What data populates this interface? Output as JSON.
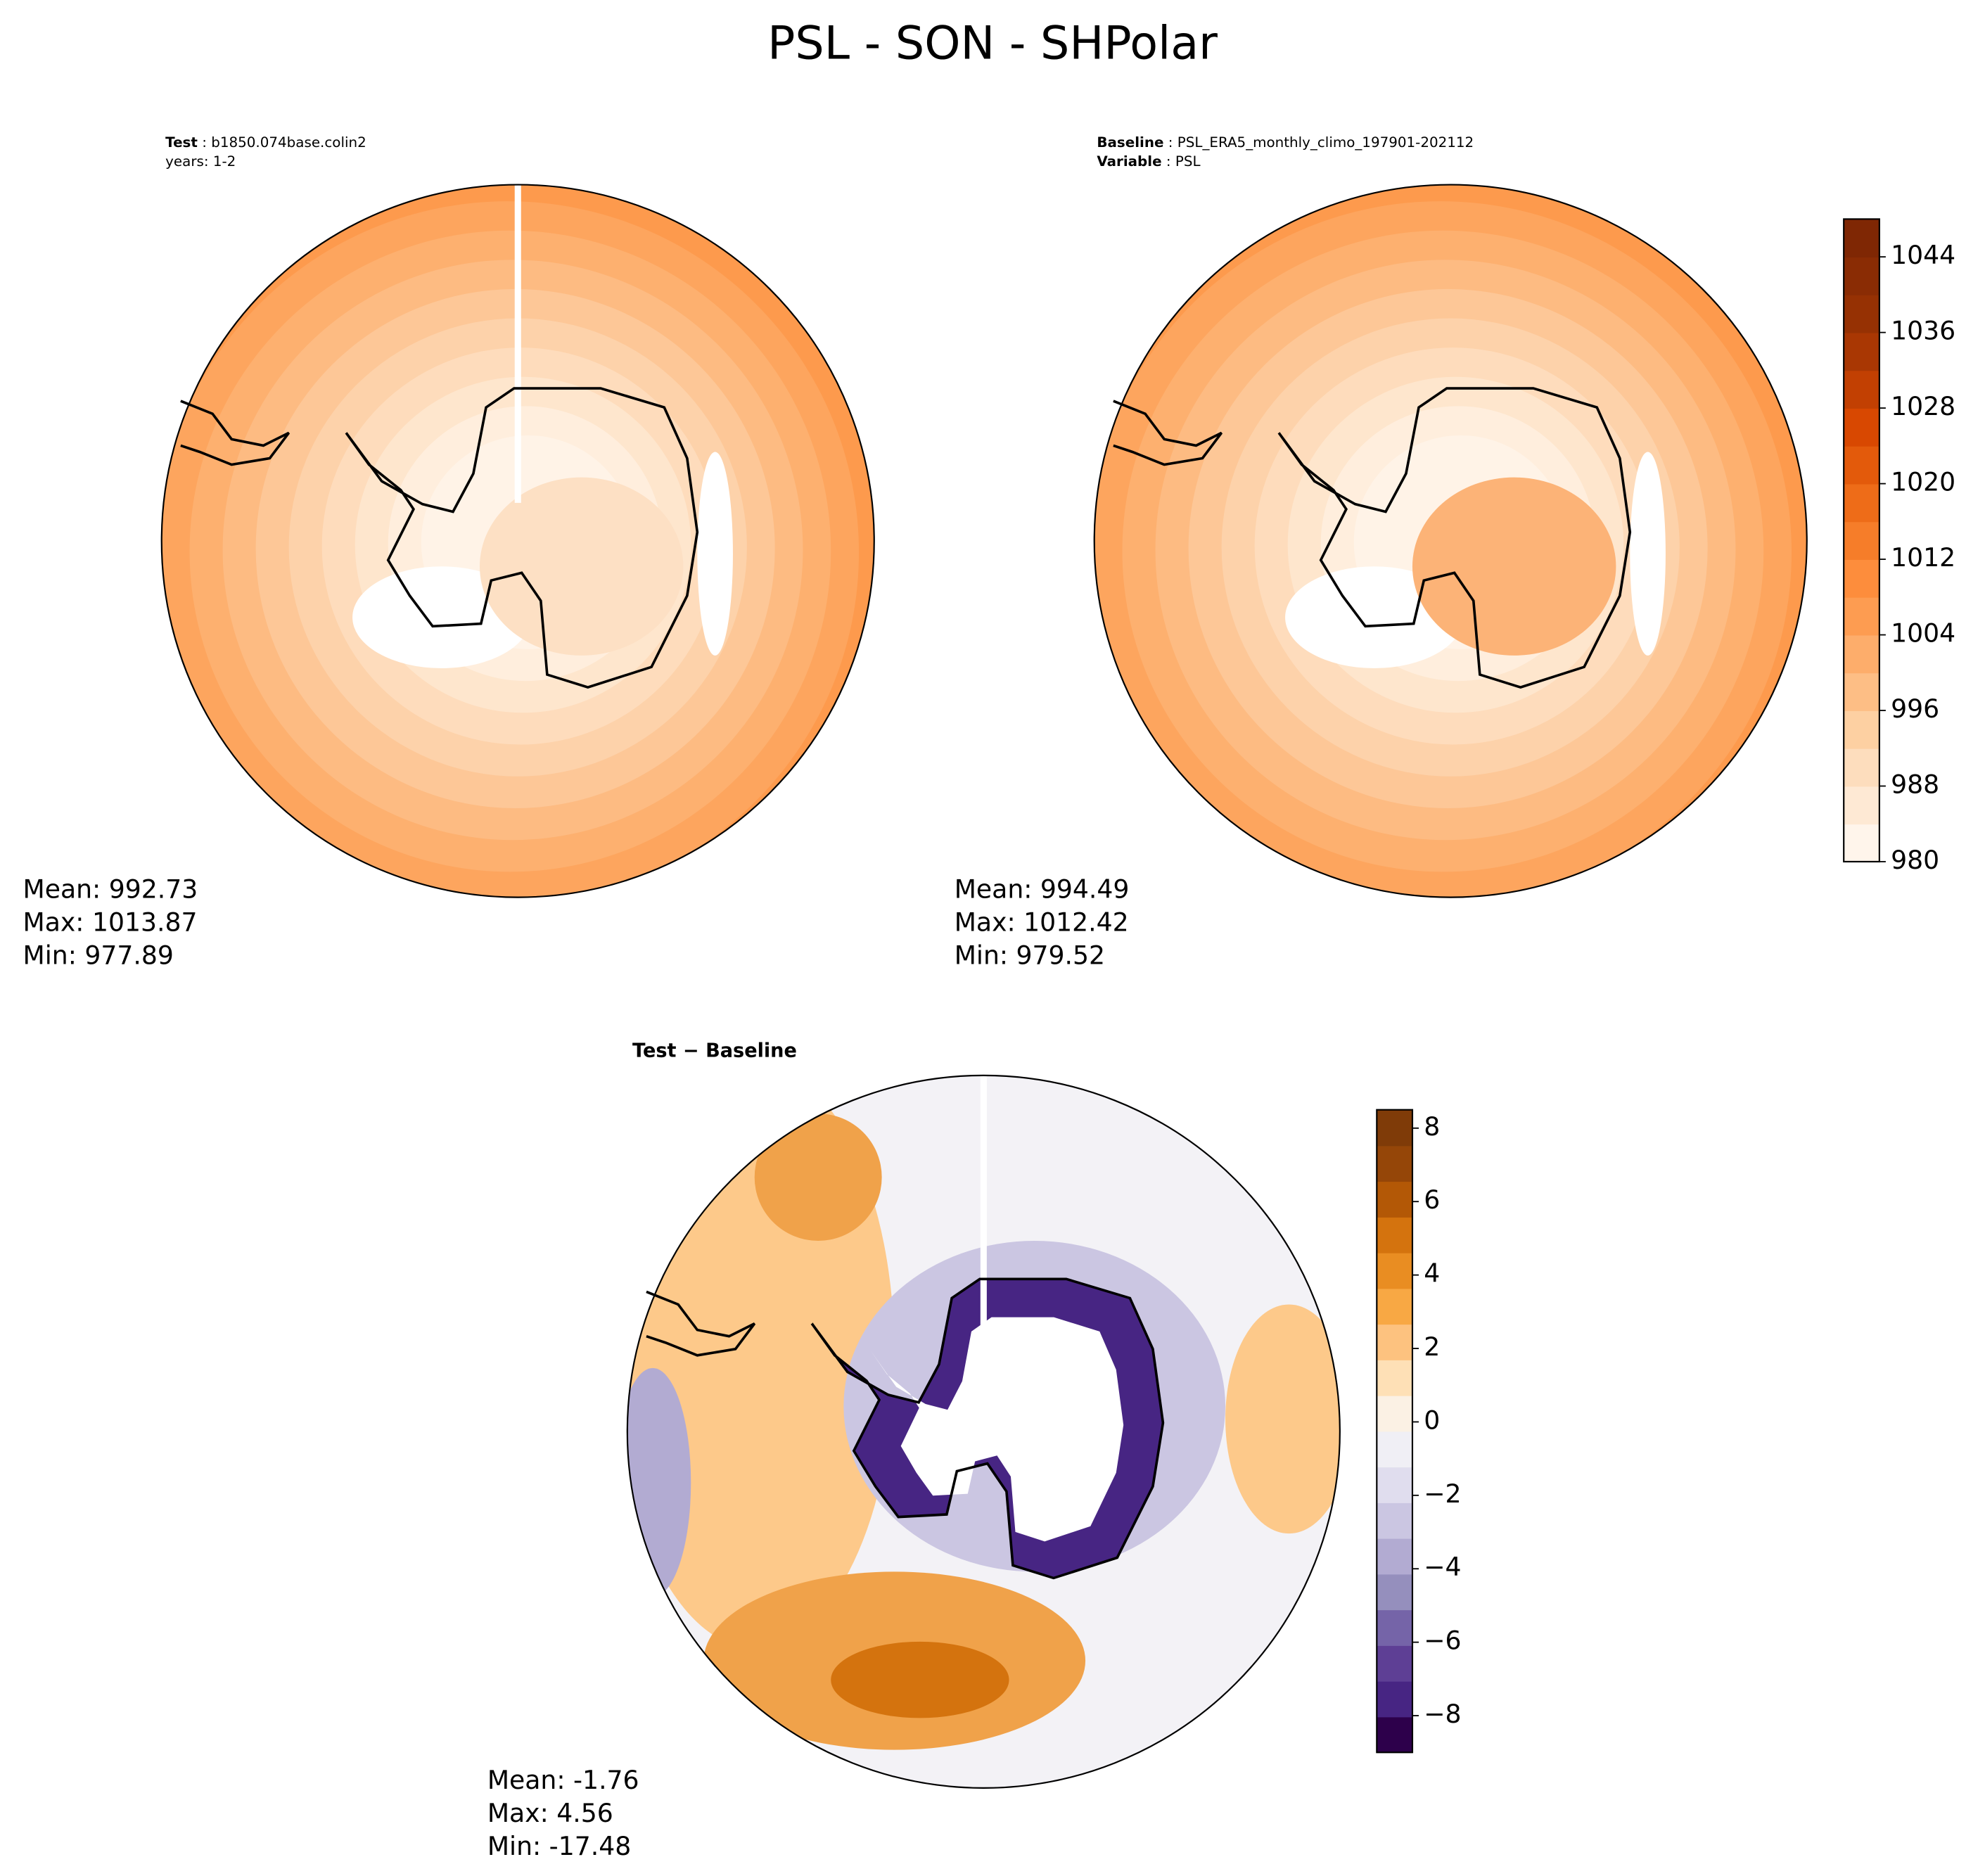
{
  "title": "PSL - SON - SHPolar",
  "panels": [
    {
      "header": [
        {
          "bold": "Test",
          "rest": " : b1850.074base.colin2"
        },
        {
          "bold": "",
          "rest": "years: 1-2"
        }
      ],
      "stats": [
        "Mean: 992.73",
        "Max: 1013.87",
        "Min: 977.89"
      ]
    },
    {
      "header": [
        {
          "bold": "Baseline",
          "rest": " : PSL_ERA5_monthly_climo_197901-202112"
        },
        {
          "bold": "Variable",
          "rest": " : PSL"
        }
      ],
      "stats": [
        "Mean: 994.49",
        "Max: 1012.42",
        "Min: 979.52"
      ]
    },
    {
      "header": [
        {
          "bold": "Test − Baseline",
          "rest": ""
        }
      ],
      "stats": [
        "Mean: -1.76",
        "Max:  4.56",
        "Min: -17.48"
      ]
    }
  ],
  "colorbars": [
    {
      "range": [
        980,
        1048
      ],
      "ticks": [
        980,
        988,
        996,
        1004,
        1012,
        1020,
        1028,
        1036,
        1044
      ],
      "colors": [
        "#fff5eb",
        "#fee9d4",
        "#fdddbd",
        "#fdd0a2",
        "#fdbe85",
        "#fdad6b",
        "#fd9c51",
        "#fd8d3c",
        "#f67d29",
        "#ee6c18",
        "#e35a0b",
        "#d84801",
        "#c24002",
        "#a93703",
        "#963103",
        "#8a2c04",
        "#7f2704"
      ]
    },
    {
      "range": [
        -9,
        8.5
      ],
      "ticks": [
        {
          "value": -8,
          "label": "−8"
        },
        {
          "value": -6,
          "label": "−6"
        },
        {
          "value": -4,
          "label": "−4"
        },
        {
          "value": -2,
          "label": "−2"
        },
        0,
        2,
        4,
        6,
        8
      ],
      "colors": [
        "#2d004b",
        "#472583",
        "#5e3f95",
        "#7564a8",
        "#958fbd",
        "#b2abd2",
        "#cbc6e2",
        "#e0ddee",
        "#f0eff5",
        "#fbf1e4",
        "#fee0b6",
        "#fdc27f",
        "#f8a844",
        "#e98d22",
        "#d4730e",
        "#b35806",
        "#954608",
        "#7f3b08"
      ]
    }
  ]
}
